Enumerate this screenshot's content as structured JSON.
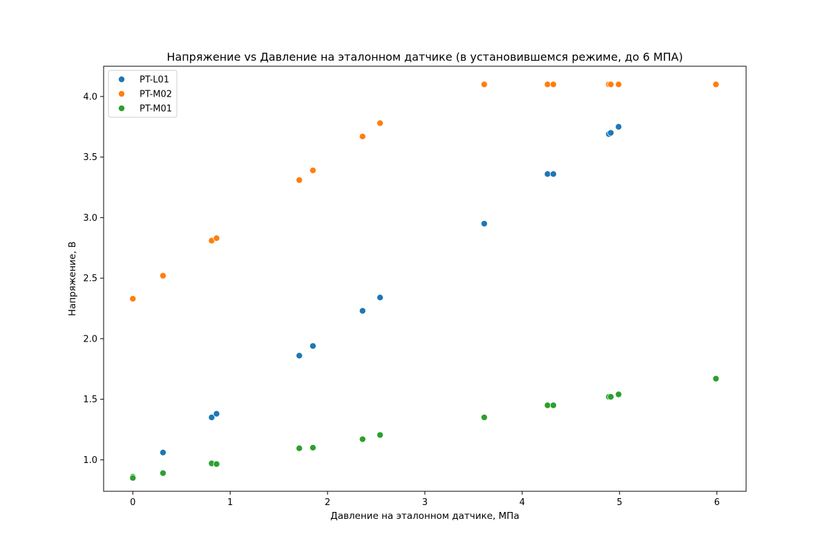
{
  "chart_data": {
    "type": "scatter",
    "title": "Напряжение vs Давление на эталонном датчике (в установившемся режиме, до 6 МПА)",
    "xlabel": "Давление на эталонном датчике, МПа",
    "ylabel": "Напряжение, В",
    "xlim": [
      -0.3,
      6.3
    ],
    "ylim": [
      0.74,
      4.25
    ],
    "x_ticks": [
      {
        "value": 0,
        "label": "0"
      },
      {
        "value": 1,
        "label": "1"
      },
      {
        "value": 2,
        "label": "2"
      },
      {
        "value": 3,
        "label": "3"
      },
      {
        "value": 4,
        "label": "4"
      },
      {
        "value": 5,
        "label": "5"
      },
      {
        "value": 6,
        "label": "6"
      }
    ],
    "y_ticks": [
      {
        "value": 1.0,
        "label": "1.0"
      },
      {
        "value": 1.5,
        "label": "1.5"
      },
      {
        "value": 2.0,
        "label": "2.0"
      },
      {
        "value": 2.5,
        "label": "2.5"
      },
      {
        "value": 3.0,
        "label": "3.0"
      },
      {
        "value": 3.5,
        "label": "3.5"
      },
      {
        "value": 4.0,
        "label": "4.0"
      }
    ],
    "grid": false,
    "legend_position": "top-left",
    "series": [
      {
        "name": "PT-L01",
        "color": "#1f77b4",
        "points": [
          {
            "x": 0.0,
            "y": 0.86
          },
          {
            "x": 0.0,
            "y": 0.85
          },
          {
            "x": 0.31,
            "y": 1.06
          },
          {
            "x": 0.81,
            "y": 1.35
          },
          {
            "x": 0.86,
            "y": 1.38
          },
          {
            "x": 1.71,
            "y": 1.86
          },
          {
            "x": 1.85,
            "y": 1.94
          },
          {
            "x": 2.36,
            "y": 2.23
          },
          {
            "x": 2.54,
            "y": 2.34
          },
          {
            "x": 3.61,
            "y": 2.95
          },
          {
            "x": 4.26,
            "y": 3.36
          },
          {
            "x": 4.32,
            "y": 3.36
          },
          {
            "x": 4.89,
            "y": 3.69
          },
          {
            "x": 4.91,
            "y": 3.7
          },
          {
            "x": 4.99,
            "y": 3.75
          }
        ]
      },
      {
        "name": "PT-M02",
        "color": "#ff7f0e",
        "points": [
          {
            "x": 0.0,
            "y": 2.33
          },
          {
            "x": 0.31,
            "y": 2.52
          },
          {
            "x": 0.81,
            "y": 2.81
          },
          {
            "x": 0.86,
            "y": 2.83
          },
          {
            "x": 1.71,
            "y": 3.31
          },
          {
            "x": 1.85,
            "y": 3.39
          },
          {
            "x": 2.36,
            "y": 3.67
          },
          {
            "x": 2.54,
            "y": 3.78
          },
          {
            "x": 3.61,
            "y": 4.1
          },
          {
            "x": 4.26,
            "y": 4.1
          },
          {
            "x": 4.32,
            "y": 4.1
          },
          {
            "x": 4.89,
            "y": 4.1
          },
          {
            "x": 4.91,
            "y": 4.1
          },
          {
            "x": 4.99,
            "y": 4.1
          },
          {
            "x": 5.99,
            "y": 4.1
          }
        ]
      },
      {
        "name": "PT-M01",
        "color": "#2ca02c",
        "points": [
          {
            "x": 0.0,
            "y": 0.86
          },
          {
            "x": 0.0,
            "y": 0.85
          },
          {
            "x": 0.31,
            "y": 0.89
          },
          {
            "x": 0.81,
            "y": 0.97
          },
          {
            "x": 0.86,
            "y": 0.965
          },
          {
            "x": 1.71,
            "y": 1.095
          },
          {
            "x": 1.85,
            "y": 1.1
          },
          {
            "x": 2.36,
            "y": 1.17
          },
          {
            "x": 2.54,
            "y": 1.205
          },
          {
            "x": 3.61,
            "y": 1.35
          },
          {
            "x": 4.26,
            "y": 1.45
          },
          {
            "x": 4.32,
            "y": 1.45
          },
          {
            "x": 4.89,
            "y": 1.52
          },
          {
            "x": 4.91,
            "y": 1.52
          },
          {
            "x": 4.99,
            "y": 1.54
          },
          {
            "x": 5.99,
            "y": 1.67
          }
        ]
      }
    ]
  }
}
